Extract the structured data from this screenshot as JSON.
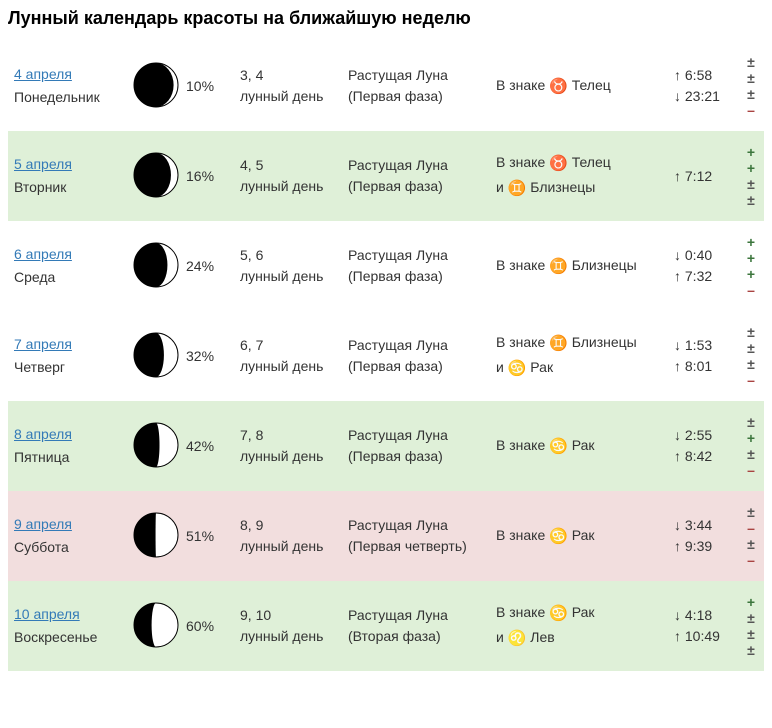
{
  "title": "Лунный календарь красоты на ближайшую неделю",
  "colors": {
    "bg_green": "#dff0d8",
    "bg_red": "#f2dede",
    "bg_white": "#ffffff",
    "link": "#337ab7",
    "plus": "#3c763d",
    "minus": "#a94442",
    "pm": "#555555",
    "text": "#333333"
  },
  "rows": [
    {
      "bg": "white",
      "date": "4 апреля",
      "weekday": "Понедельник",
      "moon": {
        "illum": 10,
        "rotation": 0,
        "percent_label": "10%"
      },
      "lunar_days": "3, 4",
      "lunar_days_label": "лунный день",
      "phase_line1": "Растущая Луна",
      "phase_line2": "(Первая фаза)",
      "sign_prefix": "В знаке ",
      "signs": [
        {
          "sym": "♉",
          "name": "Телец"
        }
      ],
      "times": [
        {
          "arrow": "↑",
          "t": "6:58"
        },
        {
          "arrow": "↓",
          "t": "23:21"
        }
      ],
      "marks": [
        "pm",
        "pm",
        "pm",
        "minus"
      ]
    },
    {
      "bg": "green",
      "date": "5 апреля",
      "weekday": "Вторник",
      "moon": {
        "illum": 16,
        "rotation": 0,
        "percent_label": "16%"
      },
      "lunar_days": "4, 5",
      "lunar_days_label": "лунный день",
      "phase_line1": "Растущая Луна",
      "phase_line2": "(Первая фаза)",
      "sign_prefix": "В знаке ",
      "signs": [
        {
          "sym": "♉",
          "name": "Телец"
        },
        {
          "sym": "♊",
          "name": "Близнецы"
        }
      ],
      "sign_joiner": "и ",
      "times": [
        {
          "arrow": "↑",
          "t": "7:12"
        }
      ],
      "marks": [
        "plus",
        "plus",
        "pm",
        "pm"
      ]
    },
    {
      "bg": "white",
      "date": "6 апреля",
      "weekday": "Среда",
      "moon": {
        "illum": 24,
        "rotation": 0,
        "percent_label": "24%"
      },
      "lunar_days": "5, 6",
      "lunar_days_label": "лунный день",
      "phase_line1": "Растущая Луна",
      "phase_line2": "(Первая фаза)",
      "sign_prefix": "В знаке ",
      "signs": [
        {
          "sym": "♊",
          "name": "Близнецы"
        }
      ],
      "times": [
        {
          "arrow": "↓",
          "t": "0:40"
        },
        {
          "arrow": "↑",
          "t": "7:32"
        }
      ],
      "marks": [
        "plus",
        "plus",
        "plus",
        "minus"
      ]
    },
    {
      "bg": "white",
      "date": "7 апреля",
      "weekday": "Четверг",
      "moon": {
        "illum": 32,
        "rotation": 0,
        "percent_label": "32%"
      },
      "lunar_days": "6, 7",
      "lunar_days_label": "лунный день",
      "phase_line1": "Растущая Луна",
      "phase_line2": "(Первая фаза)",
      "sign_prefix": "В знаке ",
      "signs": [
        {
          "sym": "♊",
          "name": "Близнецы"
        },
        {
          "sym": "♋",
          "name": "Рак"
        }
      ],
      "sign_joiner": "и ",
      "times": [
        {
          "arrow": "↓",
          "t": "1:53"
        },
        {
          "arrow": "↑",
          "t": "8:01"
        }
      ],
      "marks": [
        "pm",
        "pm",
        "pm",
        "minus"
      ]
    },
    {
      "bg": "green",
      "date": "8 апреля",
      "weekday": "Пятница",
      "moon": {
        "illum": 42,
        "rotation": 0,
        "percent_label": "42%"
      },
      "lunar_days": "7, 8",
      "lunar_days_label": "лунный день",
      "phase_line1": "Растущая Луна",
      "phase_line2": "(Первая фаза)",
      "sign_prefix": "В знаке ",
      "signs": [
        {
          "sym": "♋",
          "name": "Рак"
        }
      ],
      "times": [
        {
          "arrow": "↓",
          "t": "2:55"
        },
        {
          "arrow": "↑",
          "t": "8:42"
        }
      ],
      "marks": [
        "pm",
        "plus",
        "pm",
        "minus"
      ]
    },
    {
      "bg": "red",
      "date": "9 апреля",
      "weekday": "Суббота",
      "moon": {
        "illum": 51,
        "rotation": 0,
        "percent_label": "51%"
      },
      "lunar_days": "8, 9",
      "lunar_days_label": "лунный день",
      "phase_line1": "Растущая Луна",
      "phase_line2": "(Первая четверть)",
      "sign_prefix": "В знаке ",
      "signs": [
        {
          "sym": "♋",
          "name": "Рак"
        }
      ],
      "times": [
        {
          "arrow": "↓",
          "t": "3:44"
        },
        {
          "arrow": "↑",
          "t": "9:39"
        }
      ],
      "marks": [
        "pm",
        "minus",
        "pm",
        "minus"
      ]
    },
    {
      "bg": "green",
      "date": "10 апреля",
      "weekday": "Воскресенье",
      "moon": {
        "illum": 60,
        "rotation": 0,
        "percent_label": "60%"
      },
      "lunar_days": "9, 10",
      "lunar_days_label": "лунный день",
      "phase_line1": "Растущая Луна",
      "phase_line2": "(Вторая фаза)",
      "sign_prefix": "В знаке ",
      "signs": [
        {
          "sym": "♋",
          "name": "Рак"
        },
        {
          "sym": "♌",
          "name": "Лев"
        }
      ],
      "sign_joiner": "и ",
      "times": [
        {
          "arrow": "↓",
          "t": "4:18"
        },
        {
          "arrow": "↑",
          "t": "10:49"
        }
      ],
      "marks": [
        "plus",
        "pm",
        "pm",
        "pm"
      ]
    }
  ]
}
